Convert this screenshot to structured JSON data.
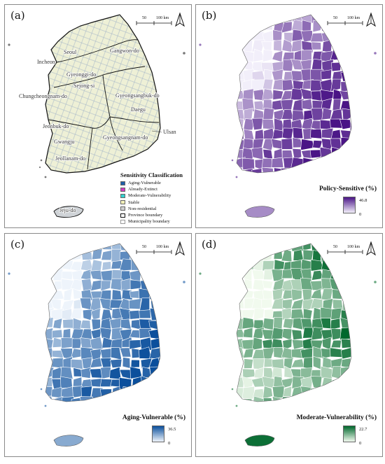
{
  "panels": {
    "a": {
      "label": "(a)",
      "scale": {
        "l1": "50",
        "l2": "100 km"
      },
      "cities": [
        "Seoul",
        "Incheon",
        "Gangwon-do",
        "Gyeonggi-do",
        "Sejong-si",
        "Chungcheongnam-do",
        "Gyeongsangbuk-do",
        "Daegu",
        "Jeonbuk-do",
        "Ulsan",
        "Gyeongsangnam-do",
        "Gwangju",
        "Jeollanam-do",
        "Jeju-do"
      ],
      "legend": {
        "title": "Sensitivity Classification",
        "items": [
          {
            "label": "Aging-Vulnerable",
            "color": "#1f5fa8"
          },
          {
            "label": "Already-Extinct",
            "color": "#d23bc0"
          },
          {
            "label": "Moderate-Vulnerability",
            "color": "#36d1cf"
          },
          {
            "label": "Stable",
            "color": "#f2f0b8"
          },
          {
            "label": "Non-residential",
            "color": "#cfcfcf"
          },
          {
            "label": "Province boundary",
            "color": "#ffffff"
          },
          {
            "label": "Municipality boundary",
            "color": "#ffffff"
          }
        ]
      }
    },
    "b": {
      "label": "(b)",
      "scale": {
        "l1": "50",
        "l2": "100 km"
      },
      "title": "Policy-Sensitive (%)",
      "max": "46.8",
      "min": "0",
      "color_low": "#f2effa",
      "color_high": "#4a1486"
    },
    "c": {
      "label": "(c)",
      "scale": {
        "l1": "50",
        "l2": "100 km"
      },
      "title": "Aging-Vulnerable (%)",
      "max": "36.5",
      "min": "0",
      "color_low": "#eef4fb",
      "color_high": "#0b4f9c"
    },
    "d": {
      "label": "(d)",
      "scale": {
        "l1": "50",
        "l2": "100 km"
      },
      "title": "Moderate-Vulnerability (%)",
      "max": "22.7",
      "min": "0",
      "color_low": "#f1faee",
      "color_high": "#00682c"
    }
  }
}
